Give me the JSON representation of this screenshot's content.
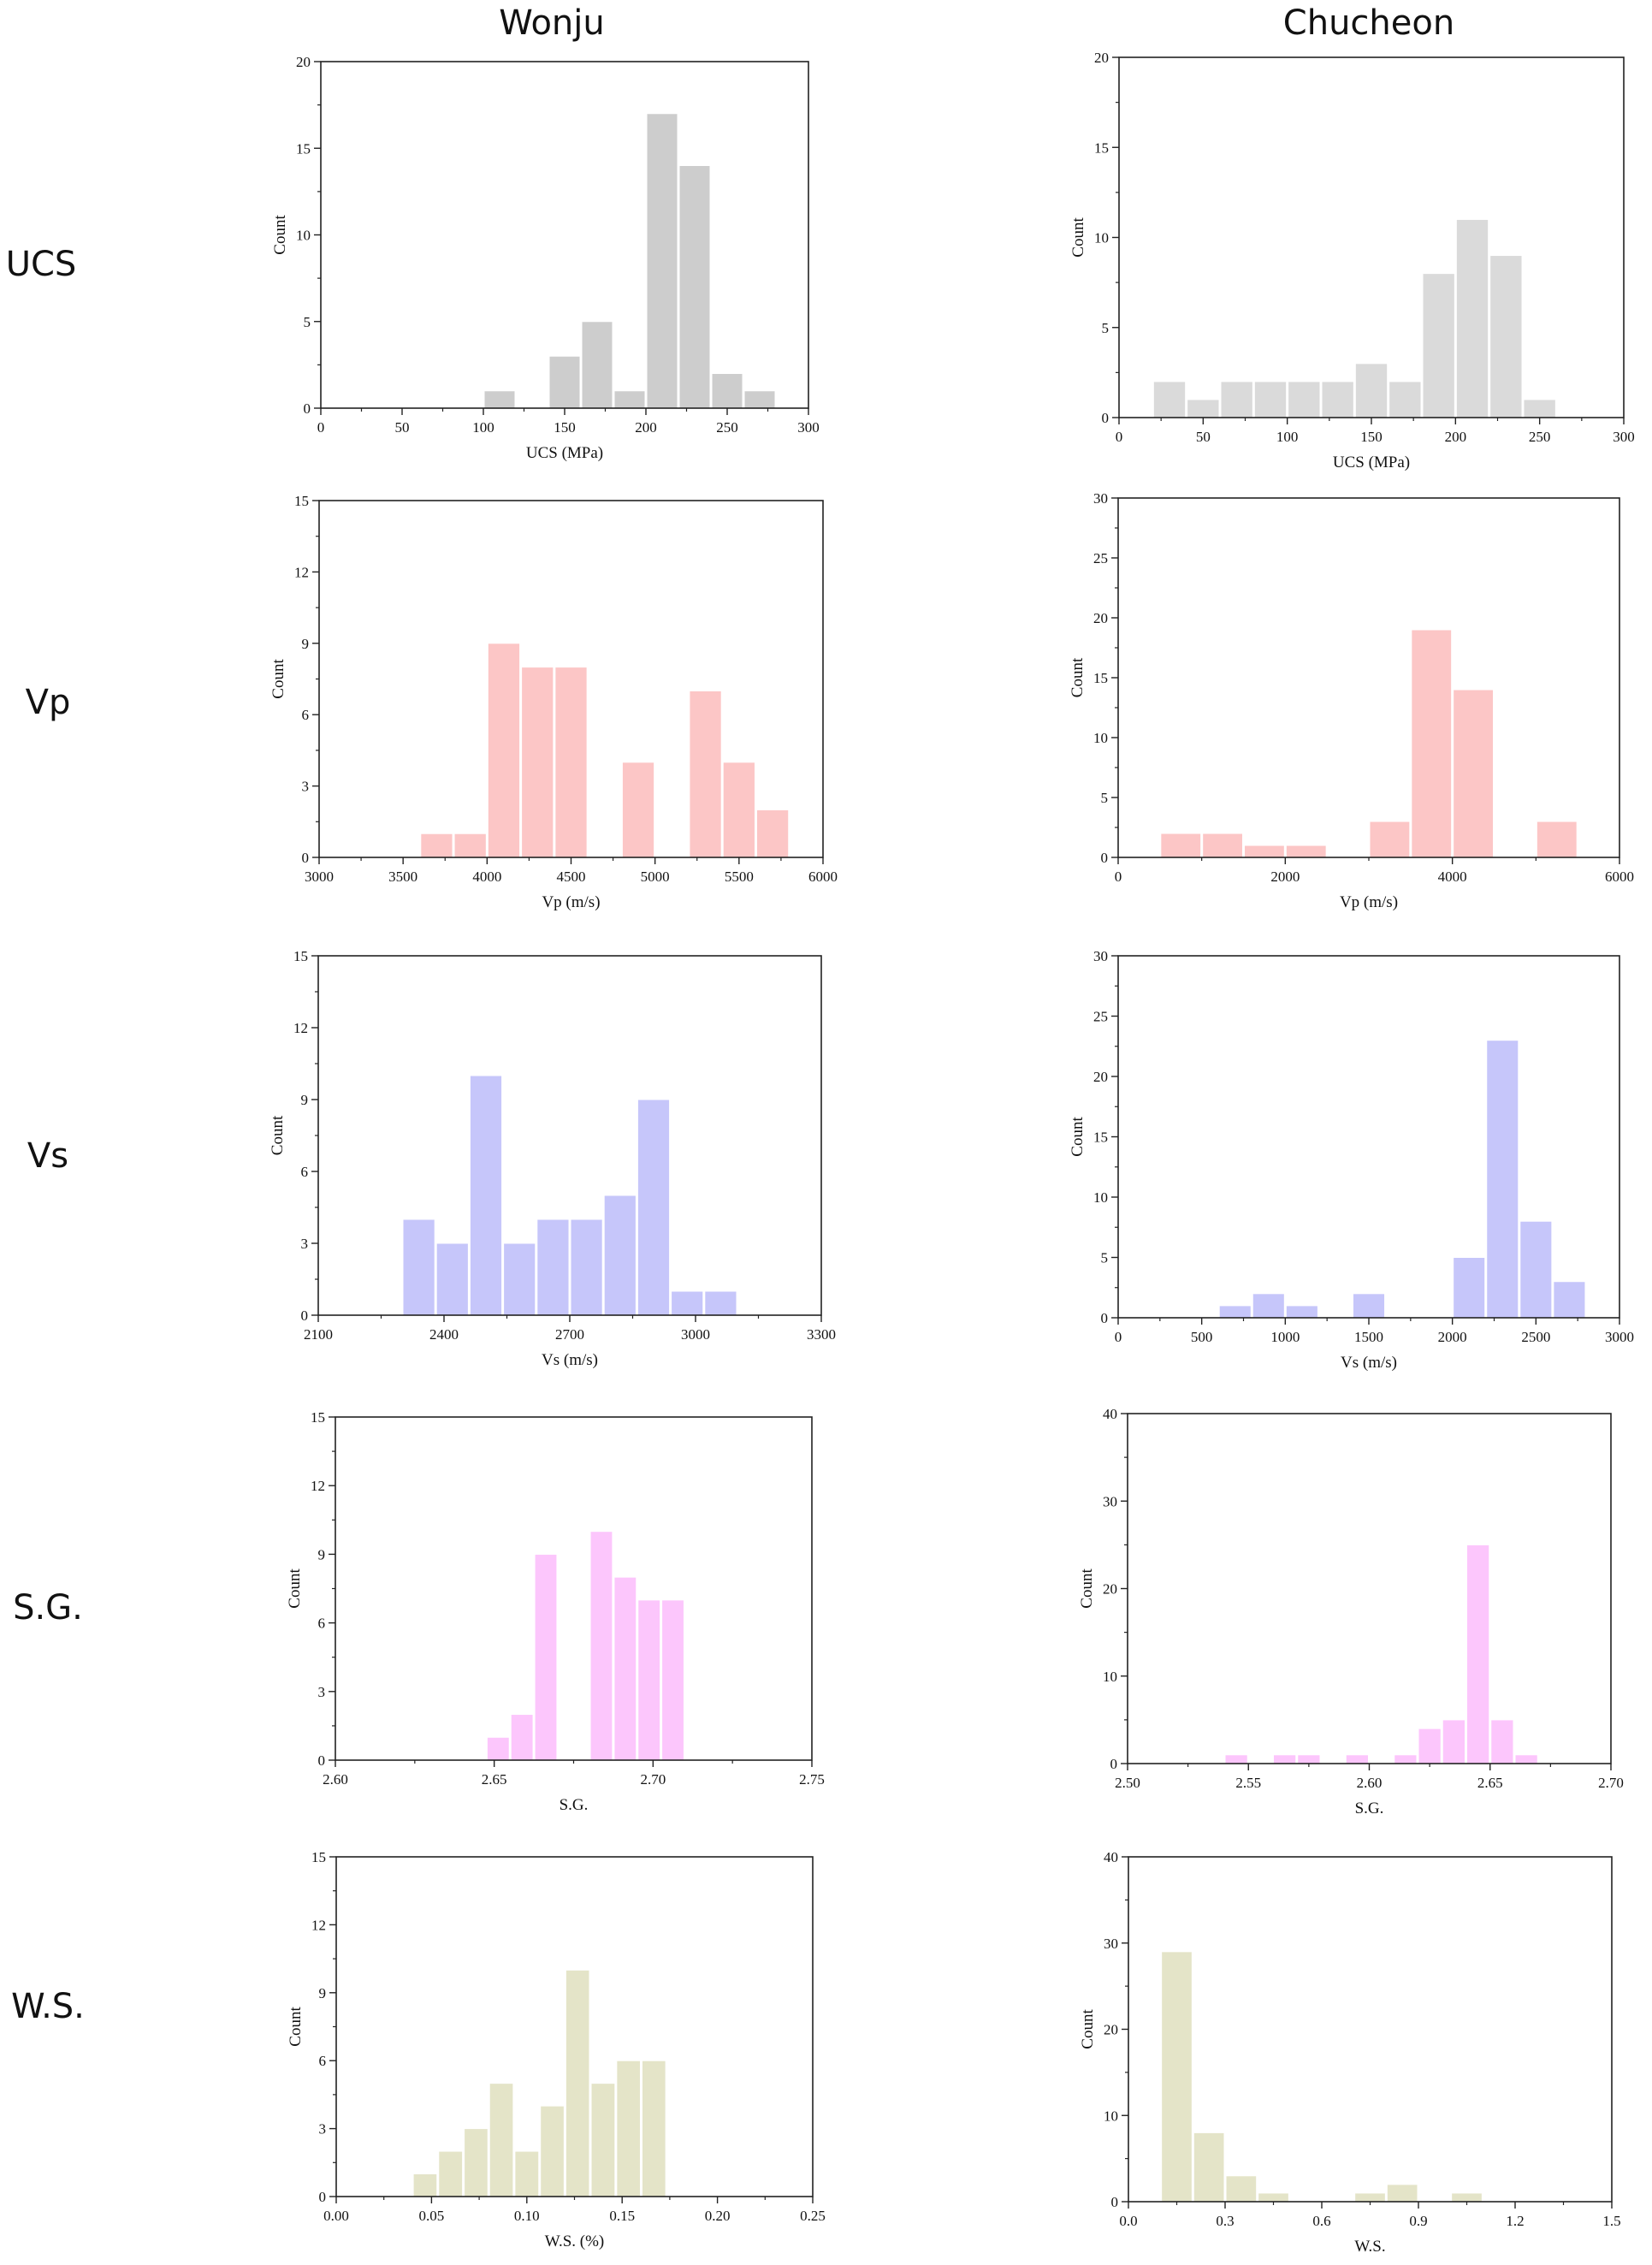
{
  "columns": [
    "Wonju",
    "Chucheon"
  ],
  "rows": [
    "UCS",
    "Vp",
    "Vs",
    "S.G.",
    "W.S."
  ],
  "chart_data": [
    {
      "id": "wonju-ucs",
      "type": "bar",
      "xlabel": "UCS (MPa)",
      "ylabel": "Count",
      "color": "#cdcdcd",
      "xlim": [
        0,
        300
      ],
      "xticks": [
        "0",
        "50",
        "100",
        "150",
        "200",
        "250",
        "300"
      ],
      "ylim": [
        0,
        20
      ],
      "yticks": [
        "0",
        "5",
        "10",
        "15",
        "20"
      ],
      "bins": [
        [
          100,
          120,
          1
        ],
        [
          140,
          160,
          3
        ],
        [
          160,
          180,
          5
        ],
        [
          180,
          200,
          1
        ],
        [
          200,
          220,
          17
        ],
        [
          220,
          240,
          14
        ],
        [
          240,
          260,
          2
        ],
        [
          260,
          280,
          1
        ]
      ]
    },
    {
      "id": "chucheon-ucs",
      "type": "bar",
      "xlabel": "UCS (MPa)",
      "ylabel": "Count",
      "color": "#dadada",
      "xlim": [
        0,
        300
      ],
      "xticks": [
        "0",
        "50",
        "100",
        "150",
        "200",
        "250",
        "300"
      ],
      "ylim": [
        0,
        20
      ],
      "yticks": [
        "0",
        "5",
        "10",
        "15",
        "20"
      ],
      "bins": [
        [
          20,
          40,
          2
        ],
        [
          40,
          60,
          1
        ],
        [
          60,
          80,
          2
        ],
        [
          80,
          100,
          2
        ],
        [
          100,
          120,
          2
        ],
        [
          120,
          140,
          2
        ],
        [
          140,
          160,
          3
        ],
        [
          160,
          180,
          2
        ],
        [
          180,
          200,
          8
        ],
        [
          200,
          220,
          11
        ],
        [
          220,
          240,
          9
        ],
        [
          240,
          260,
          1
        ]
      ]
    },
    {
      "id": "wonju-vp",
      "type": "bar",
      "xlabel": "Vp (m/s)",
      "ylabel": "Count",
      "color": "#fcc6c6",
      "xlim": [
        3000,
        6000
      ],
      "xticks": [
        "3000",
        "3500",
        "4000",
        "4500",
        "5000",
        "5500",
        "6000"
      ],
      "ylim": [
        0,
        15
      ],
      "yticks": [
        "0",
        "3",
        "6",
        "9",
        "12",
        "15"
      ],
      "bins": [
        [
          3600,
          3800,
          1
        ],
        [
          3800,
          4000,
          1
        ],
        [
          4000,
          4200,
          9
        ],
        [
          4200,
          4400,
          8
        ],
        [
          4400,
          4600,
          8
        ],
        [
          4800,
          5000,
          4
        ],
        [
          5200,
          5400,
          7
        ],
        [
          5400,
          5600,
          4
        ],
        [
          5600,
          5800,
          2
        ]
      ]
    },
    {
      "id": "chucheon-vp",
      "type": "bar",
      "xlabel": "Vp (m/s)",
      "ylabel": "Count",
      "color": "#fcc6c6",
      "xlim": [
        0,
        6000
      ],
      "xticks": [
        "0",
        "2000",
        "4000",
        "6000"
      ],
      "ylim": [
        0,
        30
      ],
      "yticks": [
        "0",
        "5",
        "10",
        "15",
        "20",
        "25",
        "30"
      ],
      "bins": [
        [
          500,
          1000,
          2
        ],
        [
          1000,
          1500,
          2
        ],
        [
          1500,
          2000,
          1
        ],
        [
          2000,
          2500,
          1
        ],
        [
          3000,
          3500,
          3
        ],
        [
          3500,
          4000,
          19
        ],
        [
          4000,
          4500,
          14
        ],
        [
          5000,
          5500,
          3
        ]
      ]
    },
    {
      "id": "wonju-vs",
      "type": "bar",
      "xlabel": "Vs (m/s)",
      "ylabel": "Count",
      "color": "#c6c6fa",
      "xlim": [
        2100,
        3300
      ],
      "xticks": [
        "2100",
        "2400",
        "2700",
        "3000",
        "3300"
      ],
      "ylim": [
        0,
        15
      ],
      "yticks": [
        "0",
        "3",
        "6",
        "9",
        "12",
        "15"
      ],
      "bins": [
        [
          2300,
          2380,
          4
        ],
        [
          2380,
          2460,
          3
        ],
        [
          2460,
          2540,
          10
        ],
        [
          2540,
          2620,
          3
        ],
        [
          2620,
          2700,
          4
        ],
        [
          2700,
          2780,
          4
        ],
        [
          2780,
          2860,
          5
        ],
        [
          2860,
          2940,
          9
        ],
        [
          2940,
          3020,
          1
        ],
        [
          3020,
          3100,
          1
        ]
      ]
    },
    {
      "id": "chucheon-vs",
      "type": "bar",
      "xlabel": "Vs (m/s)",
      "ylabel": "Count",
      "color": "#c6c6fa",
      "xlim": [
        0,
        3000
      ],
      "xticks": [
        "0",
        "500",
        "1000",
        "1500",
        "2000",
        "2500",
        "3000"
      ],
      "ylim": [
        0,
        30
      ],
      "yticks": [
        "0",
        "5",
        "10",
        "15",
        "20",
        "25",
        "30"
      ],
      "bins": [
        [
          600,
          800,
          1
        ],
        [
          800,
          1000,
          2
        ],
        [
          1000,
          1200,
          1
        ],
        [
          1400,
          1600,
          2
        ],
        [
          2000,
          2200,
          5
        ],
        [
          2200,
          2400,
          23
        ],
        [
          2400,
          2600,
          8
        ],
        [
          2600,
          2800,
          3
        ]
      ]
    },
    {
      "id": "wonju-sg",
      "type": "bar",
      "xlabel": "S.G.",
      "ylabel": "Count",
      "color": "#fcc6fc",
      "xlim": [
        2.6,
        2.75
      ],
      "xticks": [
        "2.60",
        "2.65",
        "2.70",
        "2.75"
      ],
      "ylim": [
        0,
        15
      ],
      "yticks": [
        "0",
        "3",
        "6",
        "9",
        "12",
        "15"
      ],
      "bins": [
        [
          2.6475,
          2.655,
          1
        ],
        [
          2.655,
          2.6625,
          2
        ],
        [
          2.6625,
          2.67,
          9
        ],
        [
          2.68,
          2.6875,
          10
        ],
        [
          2.6875,
          2.695,
          8
        ],
        [
          2.695,
          2.7025,
          7
        ],
        [
          2.7025,
          2.71,
          7
        ]
      ]
    },
    {
      "id": "chucheon-sg",
      "type": "bar",
      "xlabel": "S.G.",
      "ylabel": "Count",
      "color": "#fcc6fc",
      "xlim": [
        2.5,
        2.7
      ],
      "xticks": [
        "2.50",
        "2.55",
        "2.60",
        "2.65",
        "2.70"
      ],
      "ylim": [
        0,
        40
      ],
      "yticks": [
        "0",
        "10",
        "20",
        "30",
        "40"
      ],
      "bins": [
        [
          2.54,
          2.55,
          1
        ],
        [
          2.56,
          2.57,
          1
        ],
        [
          2.57,
          2.58,
          1
        ],
        [
          2.59,
          2.6,
          1
        ],
        [
          2.61,
          2.62,
          1
        ],
        [
          2.62,
          2.63,
          4
        ],
        [
          2.63,
          2.64,
          5
        ],
        [
          2.64,
          2.65,
          25
        ],
        [
          2.65,
          2.66,
          5
        ],
        [
          2.66,
          2.67,
          1
        ]
      ]
    },
    {
      "id": "wonju-ws",
      "type": "bar",
      "xlabel": "W.S. (%)",
      "ylabel": "Count",
      "color": "#e4e4c8",
      "xlim": [
        0,
        0.25
      ],
      "xticks": [
        "0.00",
        "0.05",
        "0.10",
        "0.15",
        "0.20",
        "0.25"
      ],
      "ylim": [
        0,
        15
      ],
      "yticks": [
        "0",
        "3",
        "6",
        "9",
        "12",
        "15"
      ],
      "bins": [
        [
          0.04,
          0.0533,
          1
        ],
        [
          0.0533,
          0.0667,
          2
        ],
        [
          0.0667,
          0.08,
          3
        ],
        [
          0.08,
          0.0933,
          5
        ],
        [
          0.0933,
          0.1067,
          2
        ],
        [
          0.1067,
          0.12,
          4
        ],
        [
          0.12,
          0.1333,
          10
        ],
        [
          0.1333,
          0.1467,
          5
        ],
        [
          0.1467,
          0.16,
          6
        ],
        [
          0.16,
          0.1733,
          6
        ]
      ]
    },
    {
      "id": "chucheon-ws",
      "type": "bar",
      "xlabel": "W.S.",
      "ylabel": "Count",
      "color": "#e4e4c8",
      "xlim": [
        0,
        1.5
      ],
      "xticks": [
        "0.0",
        "0.3",
        "0.6",
        "0.9",
        "1.2",
        "1.5"
      ],
      "ylim": [
        0,
        40
      ],
      "yticks": [
        "0",
        "10",
        "20",
        "30",
        "40"
      ],
      "bins": [
        [
          0.1,
          0.2,
          29
        ],
        [
          0.2,
          0.3,
          8
        ],
        [
          0.3,
          0.4,
          3
        ],
        [
          0.4,
          0.5,
          1
        ],
        [
          0.7,
          0.8,
          1
        ],
        [
          0.8,
          0.9,
          2
        ],
        [
          1.0,
          1.1,
          1
        ]
      ]
    }
  ]
}
